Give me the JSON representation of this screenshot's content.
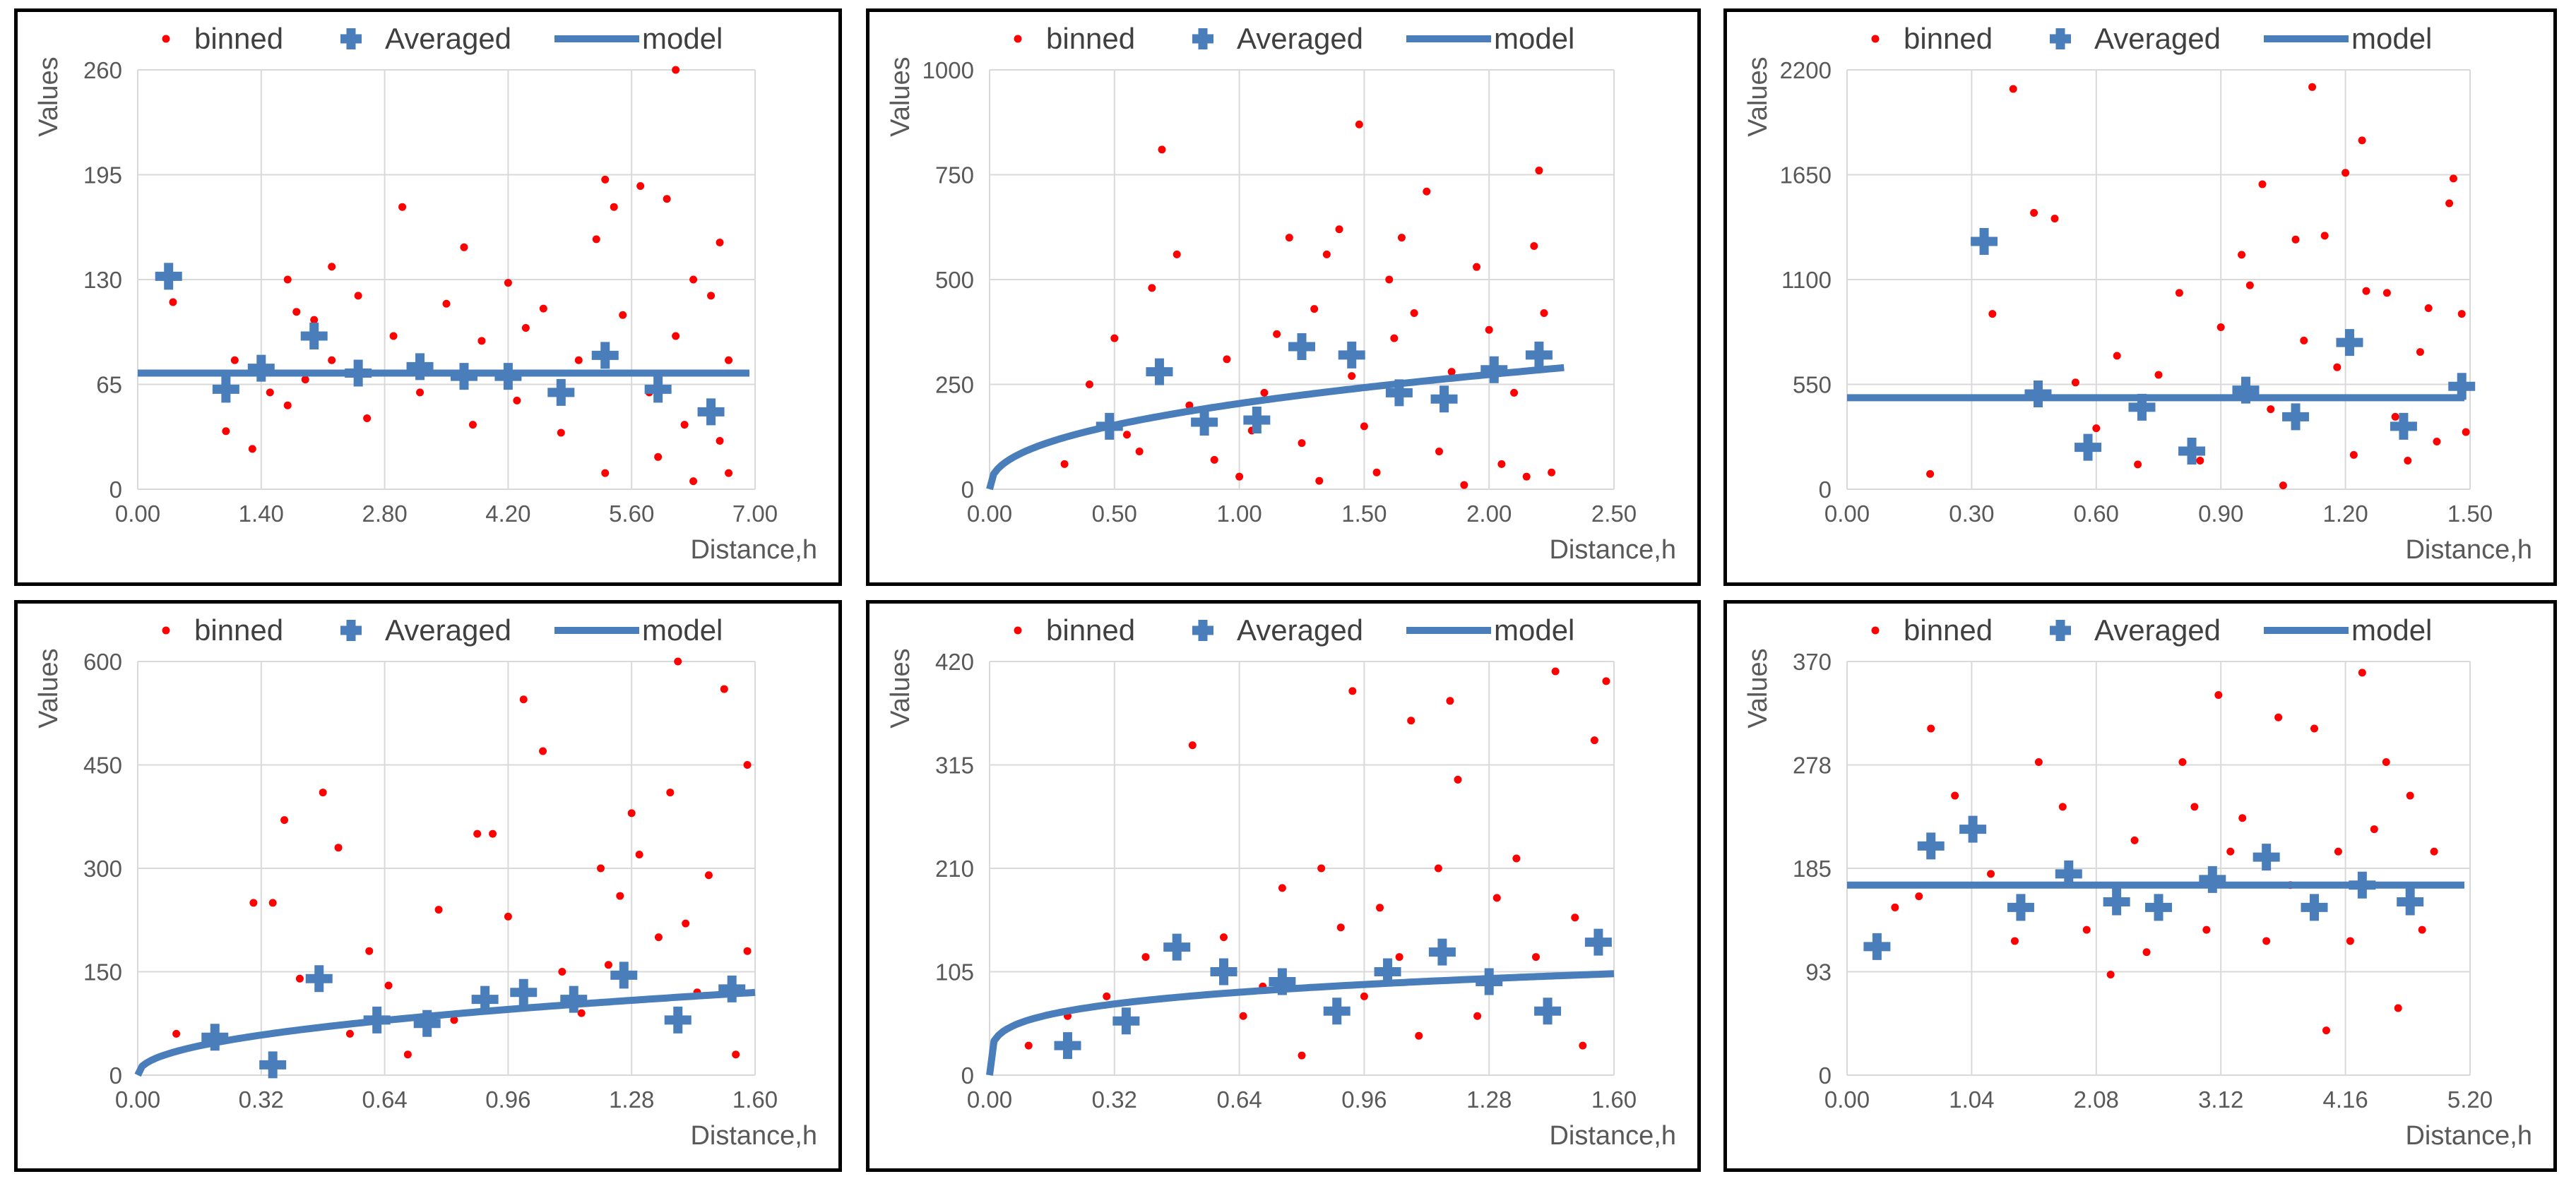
{
  "legend": {
    "binned": "binned",
    "averaged": "Averaged",
    "model": "model"
  },
  "colors": {
    "binned": "#ff0000",
    "averaged": "#4a7ebb",
    "model": "#4a7ebb",
    "grid": "#d9d9d9",
    "text": "#595959"
  },
  "chart_data": [
    {
      "type": "scatter",
      "title": "",
      "xlabel": "Distance,h",
      "ylabel": "Values",
      "xlim": [
        0,
        7
      ],
      "ylim": [
        0,
        260
      ],
      "xticks": [
        "0.00",
        "1.40",
        "2.80",
        "4.20",
        "5.60",
        "7.00"
      ],
      "yticks": [
        "0",
        "65",
        "130",
        "195",
        "260"
      ],
      "model": {
        "kind": "flat",
        "sill": 72
      },
      "averaged": [
        [
          0.35,
          132
        ],
        [
          1.0,
          62
        ],
        [
          1.4,
          75
        ],
        [
          2.0,
          95
        ],
        [
          2.5,
          72
        ],
        [
          3.2,
          76
        ],
        [
          3.7,
          70
        ],
        [
          4.2,
          70
        ],
        [
          4.8,
          60
        ],
        [
          5.3,
          83
        ],
        [
          5.9,
          62
        ],
        [
          6.5,
          48
        ]
      ],
      "binned": [
        [
          0.4,
          116
        ],
        [
          1.0,
          58
        ],
        [
          1.0,
          36
        ],
        [
          1.1,
          80
        ],
        [
          1.3,
          25
        ],
        [
          1.5,
          60
        ],
        [
          1.7,
          130
        ],
        [
          1.7,
          52
        ],
        [
          1.8,
          110
        ],
        [
          1.9,
          68
        ],
        [
          2.0,
          105
        ],
        [
          2.2,
          138
        ],
        [
          2.2,
          80
        ],
        [
          2.5,
          120
        ],
        [
          2.6,
          44
        ],
        [
          2.9,
          95
        ],
        [
          3.0,
          175
        ],
        [
          3.2,
          60
        ],
        [
          3.5,
          115
        ],
        [
          3.7,
          150
        ],
        [
          3.8,
          40
        ],
        [
          3.9,
          92
        ],
        [
          4.2,
          128
        ],
        [
          4.3,
          55
        ],
        [
          4.4,
          100
        ],
        [
          4.6,
          112
        ],
        [
          4.8,
          35
        ],
        [
          5.0,
          80
        ],
        [
          5.2,
          155
        ],
        [
          5.3,
          192
        ],
        [
          5.3,
          10
        ],
        [
          5.4,
          175
        ],
        [
          5.5,
          108
        ],
        [
          5.7,
          188
        ],
        [
          5.8,
          60
        ],
        [
          5.9,
          20
        ],
        [
          6.0,
          180
        ],
        [
          6.1,
          260
        ],
        [
          6.1,
          95
        ],
        [
          6.2,
          40
        ],
        [
          6.3,
          5
        ],
        [
          6.3,
          130
        ],
        [
          6.5,
          120
        ],
        [
          6.6,
          153
        ],
        [
          6.6,
          30
        ],
        [
          6.7,
          80
        ],
        [
          6.7,
          10
        ]
      ]
    },
    {
      "type": "scatter",
      "title": "",
      "xlabel": "Distance,h",
      "ylabel": "Values",
      "xlim": [
        0,
        2.5
      ],
      "ylim": [
        0,
        1000
      ],
      "xticks": [
        "0.00",
        "0.50",
        "1.00",
        "1.50",
        "2.00",
        "2.50"
      ],
      "yticks": [
        "0",
        "250",
        "500",
        "750",
        "1000"
      ],
      "model": {
        "kind": "power",
        "sill": 290,
        "range": 2.3,
        "exponent": 0.42
      },
      "averaged": [
        [
          0.48,
          150
        ],
        [
          0.68,
          280
        ],
        [
          0.86,
          160
        ],
        [
          1.07,
          165
        ],
        [
          1.25,
          340
        ],
        [
          1.45,
          320
        ],
        [
          1.64,
          230
        ],
        [
          1.82,
          215
        ],
        [
          2.02,
          285
        ],
        [
          2.2,
          320
        ]
      ],
      "binned": [
        [
          0.3,
          60
        ],
        [
          0.4,
          250
        ],
        [
          0.5,
          360
        ],
        [
          0.55,
          130
        ],
        [
          0.6,
          90
        ],
        [
          0.65,
          480
        ],
        [
          0.69,
          810
        ],
        [
          0.75,
          560
        ],
        [
          0.8,
          200
        ],
        [
          0.9,
          70
        ],
        [
          0.95,
          310
        ],
        [
          1.0,
          30
        ],
        [
          1.05,
          140
        ],
        [
          1.1,
          230
        ],
        [
          1.15,
          370
        ],
        [
          1.2,
          600
        ],
        [
          1.25,
          110
        ],
        [
          1.3,
          430
        ],
        [
          1.32,
          20
        ],
        [
          1.35,
          560
        ],
        [
          1.4,
          620
        ],
        [
          1.45,
          270
        ],
        [
          1.48,
          870
        ],
        [
          1.5,
          150
        ],
        [
          1.55,
          40
        ],
        [
          1.6,
          500
        ],
        [
          1.62,
          360
        ],
        [
          1.65,
          600
        ],
        [
          1.7,
          420
        ],
        [
          1.75,
          710
        ],
        [
          1.8,
          90
        ],
        [
          1.85,
          280
        ],
        [
          1.9,
          10
        ],
        [
          1.95,
          530
        ],
        [
          2.0,
          380
        ],
        [
          2.05,
          60
        ],
        [
          2.1,
          230
        ],
        [
          2.15,
          30
        ],
        [
          2.18,
          580
        ],
        [
          2.2,
          760
        ],
        [
          2.22,
          420
        ],
        [
          2.25,
          40
        ]
      ]
    },
    {
      "type": "scatter",
      "title": "",
      "xlabel": "Distance,h",
      "ylabel": "Values",
      "xlim": [
        0,
        1.5
      ],
      "ylim": [
        0,
        2200
      ],
      "xticks": [
        "0.00",
        "0.30",
        "0.60",
        "0.90",
        "1.20",
        "1.50"
      ],
      "yticks": [
        "0",
        "550",
        "1100",
        "1650",
        "2200"
      ],
      "model": {
        "kind": "flat",
        "sill": 480
      },
      "averaged": [
        [
          0.33,
          1300
        ],
        [
          0.46,
          500
        ],
        [
          0.58,
          220
        ],
        [
          0.71,
          430
        ],
        [
          0.83,
          200
        ],
        [
          0.96,
          520
        ],
        [
          1.08,
          380
        ],
        [
          1.21,
          770
        ],
        [
          1.34,
          330
        ],
        [
          1.48,
          540
        ]
      ],
      "binned": [
        [
          0.2,
          80
        ],
        [
          0.35,
          920
        ],
        [
          0.4,
          2100
        ],
        [
          0.45,
          1450
        ],
        [
          0.5,
          1420
        ],
        [
          0.55,
          560
        ],
        [
          0.6,
          320
        ],
        [
          0.65,
          700
        ],
        [
          0.7,
          130
        ],
        [
          0.75,
          600
        ],
        [
          0.8,
          1030
        ],
        [
          0.85,
          150
        ],
        [
          0.9,
          850
        ],
        [
          0.95,
          1230
        ],
        [
          0.97,
          1070
        ],
        [
          1.0,
          1600
        ],
        [
          1.02,
          420
        ],
        [
          1.05,
          20
        ],
        [
          1.08,
          1310
        ],
        [
          1.1,
          780
        ],
        [
          1.12,
          2110
        ],
        [
          1.15,
          1330
        ],
        [
          1.18,
          640
        ],
        [
          1.2,
          1660
        ],
        [
          1.22,
          180
        ],
        [
          1.24,
          1830
        ],
        [
          1.25,
          1040
        ],
        [
          1.3,
          1030
        ],
        [
          1.32,
          380
        ],
        [
          1.35,
          150
        ],
        [
          1.38,
          720
        ],
        [
          1.4,
          950
        ],
        [
          1.42,
          250
        ],
        [
          1.45,
          1500
        ],
        [
          1.46,
          1630
        ],
        [
          1.48,
          920
        ],
        [
          1.49,
          300
        ]
      ]
    },
    {
      "type": "scatter",
      "title": "",
      "xlabel": "Distance,h",
      "ylabel": "Values",
      "xlim": [
        0,
        1.6
      ],
      "ylim": [
        0,
        600
      ],
      "xticks": [
        "0.00",
        "0.32",
        "0.64",
        "0.96",
        "1.28",
        "1.60"
      ],
      "yticks": [
        "0",
        "150",
        "300",
        "450",
        "600"
      ],
      "model": {
        "kind": "power",
        "sill": 120,
        "range": 1.6,
        "exponent": 0.45
      },
      "averaged": [
        [
          0.2,
          55
        ],
        [
          0.35,
          15
        ],
        [
          0.47,
          140
        ],
        [
          0.62,
          80
        ],
        [
          0.75,
          75
        ],
        [
          0.9,
          110
        ],
        [
          1.0,
          120
        ],
        [
          1.13,
          110
        ],
        [
          1.26,
          145
        ],
        [
          1.4,
          80
        ],
        [
          1.54,
          125
        ]
      ],
      "binned": [
        [
          0.1,
          60
        ],
        [
          0.3,
          250
        ],
        [
          0.35,
          250
        ],
        [
          0.38,
          370
        ],
        [
          0.42,
          140
        ],
        [
          0.48,
          410
        ],
        [
          0.52,
          330
        ],
        [
          0.55,
          60
        ],
        [
          0.6,
          180
        ],
        [
          0.65,
          130
        ],
        [
          0.7,
          30
        ],
        [
          0.78,
          240
        ],
        [
          0.82,
          80
        ],
        [
          0.88,
          350
        ],
        [
          0.92,
          350
        ],
        [
          0.96,
          230
        ],
        [
          1.0,
          545
        ],
        [
          1.05,
          470
        ],
        [
          1.1,
          150
        ],
        [
          1.15,
          90
        ],
        [
          1.2,
          300
        ],
        [
          1.22,
          160
        ],
        [
          1.25,
          260
        ],
        [
          1.28,
          380
        ],
        [
          1.3,
          320
        ],
        [
          1.35,
          200
        ],
        [
          1.38,
          410
        ],
        [
          1.4,
          600
        ],
        [
          1.42,
          220
        ],
        [
          1.45,
          120
        ],
        [
          1.48,
          290
        ],
        [
          1.52,
          560
        ],
        [
          1.55,
          30
        ],
        [
          1.58,
          450
        ],
        [
          1.58,
          180
        ]
      ]
    },
    {
      "type": "scatter",
      "title": "",
      "xlabel": "Distance,h",
      "ylabel": "Values",
      "xlim": [
        0,
        1.6
      ],
      "ylim": [
        0,
        420
      ],
      "xticks": [
        "0.00",
        "0.32",
        "0.64",
        "0.96",
        "1.28",
        "1.60"
      ],
      "yticks": [
        "0",
        "105",
        "210",
        "315",
        "420"
      ],
      "model": {
        "kind": "power",
        "sill": 103,
        "range": 1.6,
        "exponent": 0.22
      },
      "averaged": [
        [
          0.2,
          30
        ],
        [
          0.35,
          55
        ],
        [
          0.48,
          130
        ],
        [
          0.6,
          105
        ],
        [
          0.75,
          95
        ],
        [
          0.89,
          65
        ],
        [
          1.02,
          105
        ],
        [
          1.16,
          125
        ],
        [
          1.28,
          95
        ],
        [
          1.43,
          65
        ],
        [
          1.56,
          135
        ]
      ],
      "binned": [
        [
          0.1,
          30
        ],
        [
          0.2,
          60
        ],
        [
          0.3,
          80
        ],
        [
          0.4,
          120
        ],
        [
          0.52,
          335
        ],
        [
          0.6,
          140
        ],
        [
          0.65,
          60
        ],
        [
          0.7,
          90
        ],
        [
          0.75,
          190
        ],
        [
          0.8,
          20
        ],
        [
          0.85,
          210
        ],
        [
          0.9,
          150
        ],
        [
          0.93,
          390
        ],
        [
          0.96,
          80
        ],
        [
          1.0,
          170
        ],
        [
          1.05,
          120
        ],
        [
          1.08,
          360
        ],
        [
          1.1,
          40
        ],
        [
          1.15,
          210
        ],
        [
          1.18,
          380
        ],
        [
          1.2,
          300
        ],
        [
          1.25,
          60
        ],
        [
          1.3,
          180
        ],
        [
          1.35,
          220
        ],
        [
          1.4,
          120
        ],
        [
          1.45,
          410
        ],
        [
          1.5,
          160
        ],
        [
          1.52,
          30
        ],
        [
          1.55,
          340
        ],
        [
          1.58,
          400
        ]
      ]
    },
    {
      "type": "scatter",
      "title": "",
      "xlabel": "Distance,h",
      "ylabel": "Values",
      "xlim": [
        0,
        5.2
      ],
      "ylim": [
        0,
        370
      ],
      "xticks": [
        "0.00",
        "1.04",
        "2.08",
        "3.12",
        "4.16",
        "5.20"
      ],
      "yticks": [
        "0",
        "93",
        "185",
        "278",
        "370"
      ],
      "model": {
        "kind": "flat",
        "sill": 170
      },
      "averaged": [
        [
          0.25,
          115
        ],
        [
          0.7,
          205
        ],
        [
          1.05,
          220
        ],
        [
          1.45,
          150
        ],
        [
          1.85,
          180
        ],
        [
          2.25,
          155
        ],
        [
          2.6,
          150
        ],
        [
          3.05,
          175
        ],
        [
          3.5,
          195
        ],
        [
          3.9,
          150
        ],
        [
          4.3,
          170
        ],
        [
          4.7,
          155
        ]
      ],
      "binned": [
        [
          0.4,
          150
        ],
        [
          0.6,
          160
        ],
        [
          0.7,
          310
        ],
        [
          0.9,
          250
        ],
        [
          1.2,
          180
        ],
        [
          1.4,
          120
        ],
        [
          1.6,
          280
        ],
        [
          1.8,
          240
        ],
        [
          2.0,
          130
        ],
        [
          2.2,
          90
        ],
        [
          2.4,
          210
        ],
        [
          2.5,
          110
        ],
        [
          2.8,
          280
        ],
        [
          2.9,
          240
        ],
        [
          3.0,
          130
        ],
        [
          3.1,
          340
        ],
        [
          3.2,
          200
        ],
        [
          3.3,
          230
        ],
        [
          3.5,
          120
        ],
        [
          3.6,
          320
        ],
        [
          3.7,
          170
        ],
        [
          3.9,
          310
        ],
        [
          4.0,
          40
        ],
        [
          4.1,
          200
        ],
        [
          4.2,
          120
        ],
        [
          4.3,
          360
        ],
        [
          4.4,
          220
        ],
        [
          4.5,
          280
        ],
        [
          4.6,
          60
        ],
        [
          4.7,
          250
        ],
        [
          4.8,
          130
        ],
        [
          4.9,
          200
        ]
      ]
    }
  ]
}
